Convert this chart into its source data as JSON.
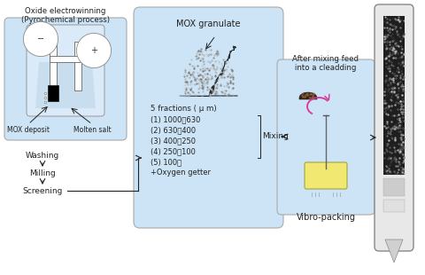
{
  "bg_color": "#ffffff",
  "box1_label": "Oxide electrowinning\n(Pyrochemical process)",
  "box1_bg": "#cce4f5",
  "box1_steps": [
    "Washing",
    "Milling",
    "Screening"
  ],
  "box2_label": "MOX granulate",
  "box2_bg": "#cce4f5",
  "box2_fractions": [
    "5 fractions ( μ m)",
    "(1) 1000～630",
    "(2) 630～400",
    "(3) 400～250",
    "(4) 250～100",
    "(5) 100～",
    "+Oxygen getter"
  ],
  "box2_mixing": "Mixing",
  "box3_label": "After mixing feed\ninto a cleadding",
  "box3_bg": "#cce4f5",
  "box3_sublabel": "Vibro-packing",
  "arrow_color": "#222222",
  "text_color": "#222222"
}
